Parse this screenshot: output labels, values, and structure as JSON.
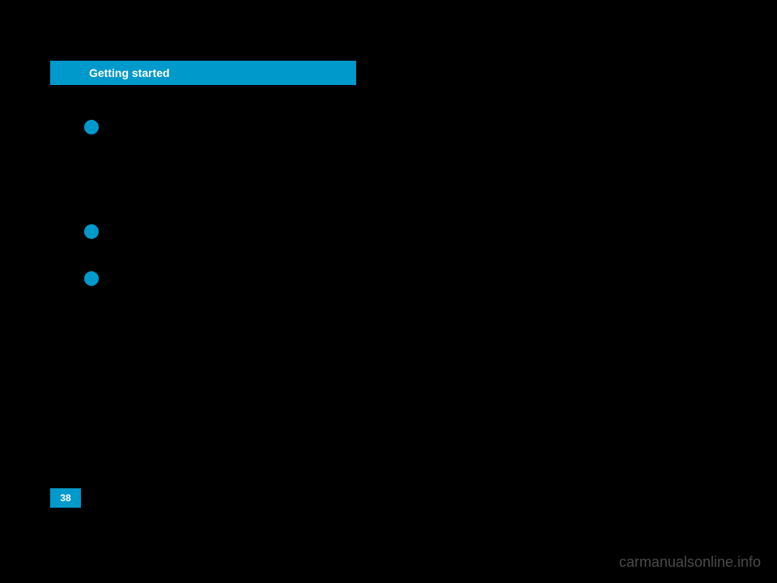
{
  "header": {
    "title": "Getting started"
  },
  "page": {
    "number": "38"
  },
  "watermark": {
    "text": "carmanualsonline.info"
  },
  "theme": {
    "accent_color": "#0099cc",
    "background_color": "#000000",
    "watermark_color": "#4a4a4a"
  }
}
